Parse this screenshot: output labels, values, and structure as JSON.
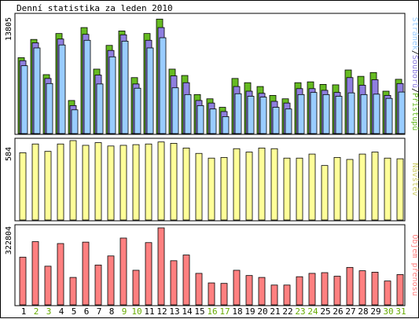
{
  "title": "Denní statistika za leden 2010",
  "colors": {
    "pristupu": "#66bb22",
    "souboru": "#8f7fdf",
    "stranek": "#99ccff",
    "navstev": "#ffff99",
    "objem": "#ff8080",
    "weekend_day": "#66aa00",
    "weekday": "#000000"
  },
  "chart_data": [
    {
      "type": "bar",
      "ymax_label": "13805",
      "legend_parts": [
        "Stránek",
        "Souborů",
        "Přístupů"
      ],
      "categories": [
        "1",
        "2",
        "3",
        "4",
        "5",
        "6",
        "7",
        "8",
        "9",
        "10",
        "11",
        "12",
        "13",
        "14",
        "15",
        "16",
        "17",
        "18",
        "19",
        "20",
        "21",
        "22",
        "23",
        "24",
        "25",
        "26",
        "27",
        "28",
        "29",
        "30",
        "31"
      ],
      "weekend": [
        false,
        true,
        true,
        false,
        false,
        false,
        false,
        false,
        true,
        true,
        false,
        false,
        false,
        false,
        false,
        true,
        true,
        false,
        false,
        false,
        false,
        false,
        true,
        true,
        false,
        false,
        false,
        false,
        false,
        true,
        true
      ],
      "ylim": [
        0,
        13805
      ],
      "series": [
        {
          "name": "Přístupů",
          "values": [
            8950,
            11100,
            6950,
            11800,
            3900,
            12500,
            7600,
            10400,
            12100,
            6600,
            11800,
            13500,
            7600,
            6850,
            4600,
            4100,
            3100,
            6500,
            6000,
            5550,
            4500,
            4100,
            6000,
            6100,
            5800,
            5750,
            7500,
            6750,
            7200,
            5000,
            6400
          ]
        },
        {
          "name": "Souborů",
          "values": [
            8600,
            10700,
            6500,
            11150,
            3300,
            11700,
            6900,
            9800,
            11650,
            5850,
            11000,
            12500,
            6800,
            6000,
            3900,
            3600,
            2600,
            5550,
            5000,
            4750,
            3800,
            3600,
            5300,
            5300,
            5100,
            4850,
            6600,
            5700,
            6350,
            4500,
            5900
          ]
        },
        {
          "name": "Stránek",
          "values": [
            8000,
            10100,
            5900,
            10450,
            2800,
            11000,
            5850,
            9050,
            10900,
            5350,
            10100,
            11300,
            5400,
            4600,
            3300,
            2900,
            2000,
            4700,
            4400,
            4300,
            3100,
            2900,
            4600,
            4850,
            4600,
            4400,
            4800,
            4600,
            4650,
            4150,
            4900
          ]
        }
      ]
    },
    {
      "type": "bar",
      "ymax_label": "584",
      "legend": "Návštěv",
      "ylim": [
        0,
        584
      ],
      "values": [
        500,
        565,
        510,
        565,
        590,
        555,
        575,
        550,
        555,
        560,
        565,
        580,
        570,
        535,
        495,
        460,
        465,
        530,
        505,
        535,
        530,
        460,
        460,
        490,
        405,
        465,
        450,
        490,
        505,
        460,
        455
      ]
    },
    {
      "type": "bar",
      "ymax_label": "322804",
      "legend": "Objem přenosu",
      "ylim": [
        0,
        322804
      ],
      "values": [
        200000,
        265000,
        162000,
        257000,
        115000,
        263000,
        167000,
        205000,
        280000,
        145000,
        261000,
        322804,
        185000,
        209000,
        132000,
        92000,
        90000,
        145000,
        123000,
        115000,
        83000,
        83000,
        118000,
        132000,
        135000,
        120000,
        157000,
        143000,
        137000,
        100000,
        127000
      ]
    }
  ]
}
